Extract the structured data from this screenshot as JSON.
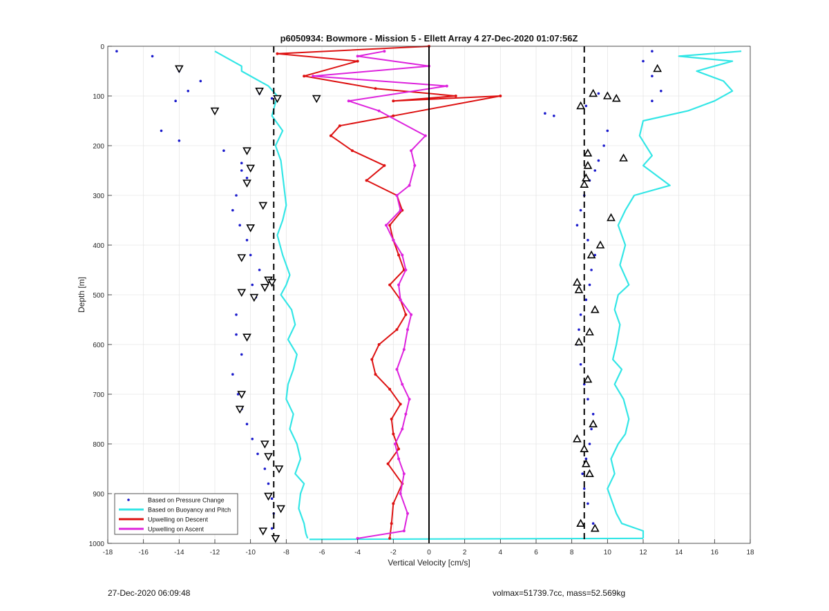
{
  "chart_data": {
    "type": "scatter",
    "title": "p6050934: Bowmore - Mission 5 - Ellett Array 4 27-Dec-2020 01:07:56Z",
    "xlabel": "Vertical Velocity [cm/s]",
    "ylabel": "Depth [m]",
    "xlim": [
      -18,
      18
    ],
    "ylim": [
      0,
      1000
    ],
    "y_reversed": true,
    "grid": true,
    "legend_position": "bottom-left",
    "xticks": [
      "-18",
      "-16",
      "-14",
      "-12",
      "-10",
      "-8",
      "-6",
      "-4",
      "-2",
      "0",
      "2",
      "4",
      "6",
      "8",
      "10",
      "12",
      "14",
      "16",
      "18"
    ],
    "yticks": [
      "0",
      "100",
      "200",
      "300",
      "400",
      "500",
      "600",
      "700",
      "800",
      "900",
      "1000"
    ],
    "reference_lines": [
      {
        "x": -8.7,
        "style": "dashed",
        "color": "#000000"
      },
      {
        "x": 0,
        "style": "solid",
        "color": "#000000"
      },
      {
        "x": 8.7,
        "style": "dashed",
        "color": "#000000"
      }
    ],
    "series": [
      {
        "name": "Based on Pressure Change",
        "style": "dots",
        "color": "#1a1acc",
        "dive": {
          "x": [
            -17.5,
            -15.5,
            -14,
            -12.8,
            -13.5,
            -14.2,
            -9.5,
            -8.8,
            -12,
            -15,
            -14,
            -11.5,
            -10.5,
            -10.5,
            -10.2,
            -10.8,
            -11,
            -10.6,
            -10.2,
            -10,
            -9.5,
            -9.9,
            -9.7,
            -10.8,
            -10.8,
            -10.5,
            -11,
            -10.7,
            -10.5,
            -10.2,
            -9.9,
            -9.6,
            -9.2,
            -9.0,
            -8.8,
            -8.7,
            -8.8
          ],
          "y": [
            10,
            20,
            50,
            70,
            90,
            110,
            95,
            105,
            130,
            170,
            190,
            210,
            235,
            250,
            265,
            300,
            330,
            360,
            390,
            420,
            450,
            480,
            505,
            540,
            580,
            620,
            660,
            700,
            730,
            760,
            790,
            820,
            850,
            880,
            910,
            940,
            970
          ]
        },
        "climb": {
          "x": [
            12.5,
            12,
            12.5,
            13,
            12.5,
            9.5,
            8.8,
            7,
            6.5,
            10,
            9.8,
            9.5,
            9.3,
            9,
            8.7,
            8.5,
            8.3,
            8.9,
            9.3,
            9.1,
            9.0,
            8.8,
            8.5,
            8.4,
            8.3,
            8.5,
            8.7,
            8.9,
            9.2,
            9.1,
            9.0,
            8.8,
            8.6,
            8.7,
            8.9,
            9.2
          ],
          "y": [
            10,
            30,
            60,
            90,
            110,
            95,
            120,
            140,
            135,
            170,
            200,
            230,
            250,
            270,
            300,
            330,
            360,
            390,
            420,
            450,
            480,
            510,
            540,
            570,
            600,
            640,
            680,
            710,
            740,
            770,
            800,
            830,
            860,
            890,
            920,
            960
          ]
        }
      },
      {
        "name": "Based on Buoyancy and Pitch",
        "style": "line",
        "color": "#33e6e6",
        "dive": {
          "x": [
            -12,
            -11.5,
            -10.5,
            -10.5,
            -9,
            -8.5,
            -8.8,
            -8.2,
            -8.6,
            -8.3,
            -8.2,
            -8.1,
            -8.0,
            -8.2,
            -8.5,
            -8.2,
            -8.0,
            -7.8,
            -8.0,
            -8.3,
            -7.7,
            -7.5,
            -7.9,
            -7.4,
            -7.6,
            -7.9,
            -8.0,
            -7.6,
            -7.8,
            -7.4,
            -7.2,
            -7.5,
            -7.0,
            -7.2,
            -7.3,
            -7.0,
            -6.9,
            -6.8
          ],
          "y": [
            10,
            20,
            40,
            50,
            80,
            100,
            140,
            170,
            200,
            230,
            260,
            290,
            320,
            350,
            380,
            420,
            440,
            460,
            480,
            500,
            530,
            560,
            590,
            620,
            650,
            680,
            710,
            740,
            770,
            800,
            830,
            860,
            880,
            900,
            930,
            960,
            980,
            990
          ]
        },
        "climb": {
          "x": [
            17.5,
            14,
            17,
            15,
            16.5,
            17,
            16,
            14.5,
            12,
            11.8,
            12.5,
            12,
            13.5,
            11.5,
            11,
            10.6,
            11,
            10.7,
            11.2,
            10.6,
            10.4,
            10.7,
            10.5,
            10.3,
            10.8,
            10.4,
            10.9,
            11.2,
            11,
            10.6,
            10.2,
            10.4,
            10.0,
            10.2,
            10.5,
            10.8,
            12,
            12,
            12
          ],
          "y": [
            10,
            20,
            30,
            50,
            70,
            90,
            110,
            130,
            150,
            180,
            220,
            240,
            280,
            300,
            330,
            360,
            400,
            440,
            480,
            500,
            530,
            560,
            600,
            630,
            650,
            680,
            710,
            750,
            780,
            800,
            830,
            860,
            890,
            910,
            940,
            960,
            975,
            985,
            990
          ]
        },
        "bottom_connector": {
          "x": [
            12,
            -6.7
          ],
          "y": [
            990,
            992
          ]
        }
      },
      {
        "name": "Upwelling on Descent",
        "style": "line-markers",
        "color": "#dd1111",
        "points": {
          "x": [
            0,
            -8.5,
            -4,
            -7,
            -3,
            1.5,
            -2,
            4,
            -2,
            -5,
            -5.5,
            -4.3,
            -2.5,
            -3.5,
            -1.8,
            -1.5,
            -2.2,
            -2.0,
            -1.7,
            -1.4,
            -2.2,
            -1.6,
            -1.3,
            -1.8,
            -2.8,
            -3.2,
            -3.0,
            -2.2,
            -1.6,
            -2.1,
            -2.0,
            -1.7,
            -2.3,
            -1.5,
            -2.0,
            -2.1,
            -2.2
          ],
          "y": [
            0,
            15,
            30,
            60,
            85,
            100,
            110,
            100,
            140,
            160,
            180,
            210,
            240,
            270,
            300,
            330,
            360,
            390,
            420,
            450,
            480,
            510,
            540,
            570,
            600,
            630,
            660,
            690,
            720,
            750,
            780,
            810,
            840,
            880,
            920,
            960,
            990
          ]
        }
      },
      {
        "name": "Upwelling on Ascent",
        "style": "line-markers",
        "color": "#dd22dd",
        "points": {
          "x": [
            -2.5,
            -4,
            0,
            -6.5,
            1,
            -4.5,
            -2.8,
            -0.2,
            -1.0,
            -0.8,
            -1.1,
            -1.8,
            -1.6,
            -2.4,
            -2.0,
            -1.5,
            -1.3,
            -1.7,
            -1.6,
            -1.0,
            -1.2,
            -1.4,
            -1.8,
            -1.5,
            -1.1,
            -1.3,
            -1.5,
            -1.9,
            -1.7,
            -1.4,
            -1.6,
            -1.2,
            -1.4,
            -4.0
          ],
          "y": [
            10,
            20,
            40,
            60,
            80,
            110,
            130,
            180,
            210,
            240,
            280,
            300,
            330,
            360,
            390,
            420,
            450,
            480,
            510,
            540,
            570,
            610,
            650,
            680,
            710,
            740,
            770,
            800,
            830,
            860,
            900,
            940,
            975,
            990
          ]
        }
      }
    ],
    "legend": [
      {
        "label": "Based on Pressure Change",
        "color": "#1a1acc",
        "marker": "dot"
      },
      {
        "label": "Based on Buoyancy and Pitch",
        "color": "#33e6e6",
        "marker": "line"
      },
      {
        "label": "Upwelling on Descent",
        "color": "#dd1111",
        "marker": "line"
      },
      {
        "label": "Upwelling on Ascent",
        "color": "#dd22dd",
        "marker": "line"
      }
    ],
    "triangle_markers": {
      "dive": {
        "x": [
          -14,
          -9.5,
          -8.5,
          -6.3,
          -12,
          -10.2,
          -10,
          -10.2,
          -9.3,
          -10,
          -10.5,
          -9.0,
          -8.8,
          -9.2,
          -10.5,
          -9.8,
          -10.2,
          -10.5,
          -10.6,
          -9.2,
          -9.0,
          -8.4,
          -9.0,
          -8.3,
          -9.3,
          -8.6
        ],
        "y": [
          45,
          90,
          105,
          105,
          130,
          210,
          245,
          275,
          320,
          365,
          425,
          470,
          475,
          485,
          495,
          505,
          585,
          700,
          730,
          800,
          825,
          850,
          905,
          930,
          975,
          990
        ]
      },
      "climb": {
        "x": [
          12.8,
          9.2,
          10,
          10.5,
          8.5,
          8.9,
          8.9,
          10.9,
          8.8,
          8.7,
          10.2,
          9.6,
          9.1,
          8.3,
          8.4,
          9.3,
          9.0,
          8.4,
          8.9,
          9.2,
          8.3,
          8.7,
          8.8,
          9.0,
          8.5,
          9.3
        ],
        "y": [
          45,
          95,
          100,
          105,
          120,
          215,
          240,
          225,
          265,
          278,
          345,
          400,
          420,
          475,
          490,
          530,
          575,
          595,
          670,
          760,
          790,
          810,
          840,
          860,
          960,
          970
        ]
      }
    }
  },
  "footer": {
    "left": "27-Dec-2020 06:09:48",
    "right": "volmax=51739.7cc, mass=52.569kg"
  }
}
